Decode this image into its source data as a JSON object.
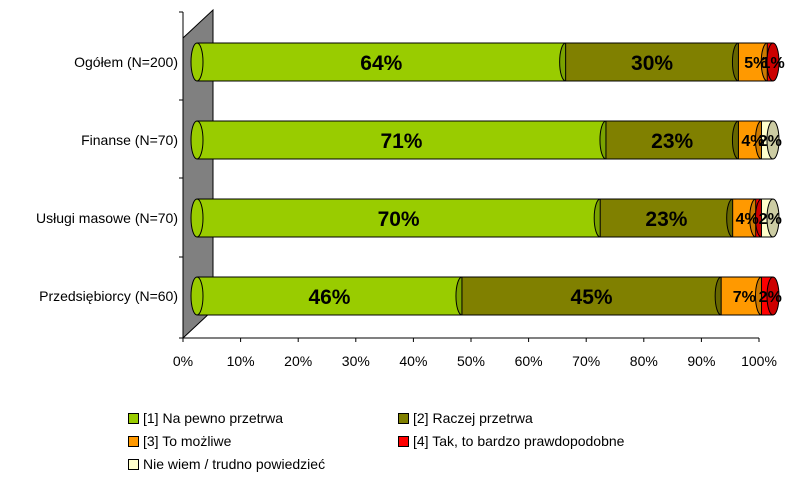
{
  "chart_data": {
    "type": "bar",
    "orientation": "horizontal",
    "stacked": "percent",
    "style": "3d-cylinder",
    "categories": [
      "Ogółem (N=200)",
      "Finanse (N=70)",
      "Usługi masowe (N=70)",
      "Przedsiębiorcy (N=60)"
    ],
    "series": [
      {
        "name": "[1] Na pewno przetrwa",
        "color": "#99CC00",
        "values": [
          64,
          71,
          70,
          46
        ],
        "labels": [
          "64%",
          "71%",
          "70%",
          "46%"
        ]
      },
      {
        "name": "[2] Raczej przetrwa",
        "color": "#808000",
        "values": [
          30,
          23,
          23,
          45
        ],
        "labels": [
          "30%",
          "23%",
          "23%",
          "45%"
        ]
      },
      {
        "name": "[3] To możliwe",
        "color": "#FF9900",
        "values": [
          5,
          4,
          4,
          7
        ],
        "labels": [
          "5%",
          "4%",
          "4%",
          "7%"
        ]
      },
      {
        "name": "[4] Tak, to bardzo prawdopodobne",
        "color": "#FF0000",
        "values": [
          1,
          0,
          1,
          2
        ],
        "labels": [
          "1%",
          "",
          "",
          "2%"
        ]
      },
      {
        "name": "Nie wiem / trudno powiedzieć",
        "color": "#FFFFCC",
        "values": [
          0,
          2,
          2,
          0
        ],
        "labels": [
          "",
          "2%",
          "2%",
          ""
        ]
      }
    ],
    "x_ticks": [
      "0%",
      "10%",
      "20%",
      "30%",
      "40%",
      "50%",
      "60%",
      "70%",
      "80%",
      "90%",
      "100%"
    ],
    "xlim": [
      0,
      100
    ],
    "legend_position": "bottom"
  }
}
